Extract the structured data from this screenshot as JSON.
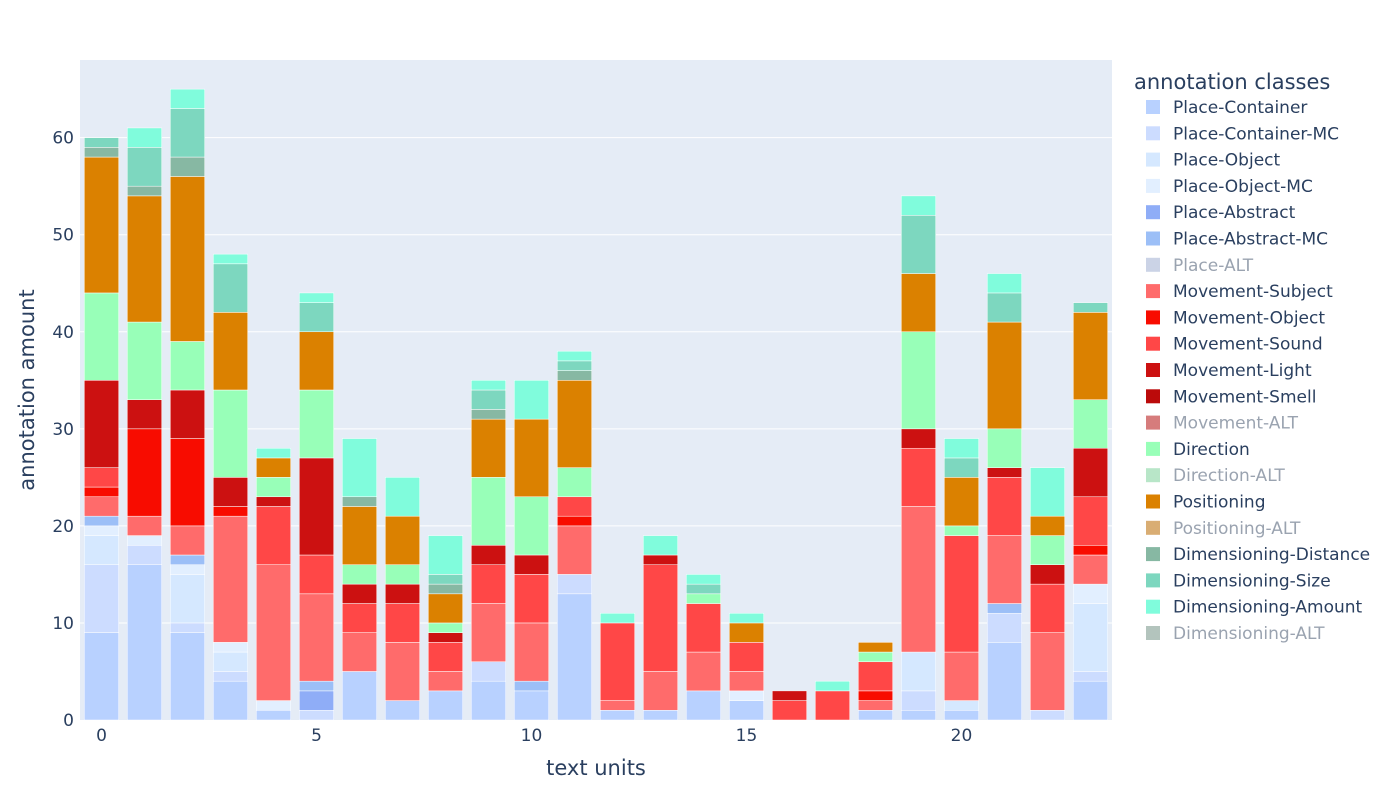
{
  "chart_data": {
    "type": "bar",
    "barmode": "stack",
    "xlabel": "text units",
    "ylabel": "annotation amount",
    "x": [
      0,
      1,
      2,
      3,
      4,
      5,
      6,
      7,
      8,
      9,
      10,
      11,
      12,
      13,
      14,
      15,
      16,
      17,
      18,
      19,
      20,
      21,
      22,
      23
    ],
    "x_range": [
      -0.5,
      23.5
    ],
    "ylim": [
      0,
      68
    ],
    "x_ticks": [
      0,
      5,
      10,
      15,
      20
    ],
    "y_ticks": [
      0,
      10,
      20,
      30,
      40,
      50,
      60
    ],
    "grid": true,
    "legend": {
      "title": "annotation classes",
      "placement": "right"
    },
    "series": [
      {
        "name": "Place-Container",
        "color": "#b8d1ff",
        "legend_dim": false,
        "values": [
          9,
          16,
          9,
          4,
          1,
          0,
          5,
          2,
          3,
          4,
          3,
          13,
          1,
          1,
          3,
          2,
          0,
          0,
          1,
          1,
          1,
          8,
          0,
          4
        ]
      },
      {
        "name": "Place-Container-MC",
        "color": "#ccdcff",
        "legend_dim": false,
        "values": [
          7,
          2,
          1,
          1,
          0,
          1,
          0,
          0,
          0,
          2,
          0,
          2,
          0,
          0,
          0,
          0,
          0,
          0,
          0,
          2,
          0,
          3,
          1,
          1
        ]
      },
      {
        "name": "Place-Object",
        "color": "#d5e8ff",
        "legend_dim": false,
        "values": [
          3,
          0,
          5,
          2,
          0,
          0,
          0,
          0,
          0,
          0,
          0,
          0,
          0,
          0,
          0,
          0,
          0,
          0,
          0,
          4,
          1,
          0,
          0,
          7
        ]
      },
      {
        "name": "Place-Object-MC",
        "color": "#e2efff",
        "legend_dim": false,
        "values": [
          1,
          1,
          1,
          1,
          1,
          0,
          0,
          0,
          0,
          0,
          0,
          0,
          0,
          0,
          0,
          1,
          0,
          0,
          0,
          0,
          0,
          0,
          0,
          2
        ]
      },
      {
        "name": "Place-Abstract",
        "color": "#8fadf7",
        "legend_dim": false,
        "values": [
          0,
          0,
          0,
          0,
          0,
          2,
          0,
          0,
          0,
          0,
          0,
          0,
          0,
          0,
          0,
          0,
          0,
          0,
          0,
          0,
          0,
          0,
          0,
          0
        ]
      },
      {
        "name": "Place-Abstract-MC",
        "color": "#9cbff7",
        "legend_dim": false,
        "values": [
          1,
          0,
          1,
          0,
          0,
          1,
          0,
          0,
          0,
          0,
          1,
          0,
          0,
          0,
          0,
          0,
          0,
          0,
          0,
          0,
          0,
          1,
          0,
          0
        ]
      },
      {
        "name": "Place-ALT",
        "color": "#cbd3e6",
        "legend_dim": true,
        "values": [
          0,
          0,
          0,
          0,
          0,
          0,
          0,
          0,
          0,
          0,
          0,
          0,
          0,
          0,
          0,
          0,
          0,
          0,
          0,
          0,
          0,
          0,
          0,
          0
        ]
      },
      {
        "name": "Movement-Subject",
        "color": "#ff6b6b",
        "legend_dim": false,
        "values": [
          2,
          2,
          3,
          13,
          14,
          9,
          4,
          6,
          2,
          6,
          6,
          5,
          1,
          4,
          4,
          2,
          0,
          0,
          1,
          15,
          5,
          7,
          8,
          3
        ]
      },
      {
        "name": "Movement-Object",
        "color": "#f80c00",
        "legend_dim": false,
        "values": [
          1,
          9,
          9,
          1,
          0,
          0,
          0,
          0,
          0,
          0,
          0,
          1,
          0,
          0,
          0,
          0,
          0,
          0,
          1,
          0,
          0,
          0,
          0,
          1
        ]
      },
      {
        "name": "Movement-Sound",
        "color": "#ff4747",
        "legend_dim": false,
        "values": [
          2,
          0,
          0,
          0,
          6,
          4,
          3,
          4,
          3,
          4,
          5,
          2,
          8,
          11,
          5,
          3,
          2,
          3,
          3,
          6,
          12,
          6,
          5,
          5
        ]
      },
      {
        "name": "Movement-Light",
        "color": "#cc1111",
        "legend_dim": false,
        "values": [
          9,
          3,
          5,
          3,
          1,
          10,
          2,
          2,
          1,
          2,
          2,
          0,
          0,
          1,
          0,
          0,
          1,
          0,
          0,
          2,
          0,
          1,
          2,
          5
        ]
      },
      {
        "name": "Movement-Smell",
        "color": "#bb0a0a",
        "legend_dim": false,
        "values": [
          0,
          0,
          0,
          0,
          0,
          0,
          0,
          0,
          0,
          0,
          0,
          0,
          0,
          0,
          0,
          0,
          0,
          0,
          0,
          0,
          0,
          0,
          0,
          0
        ]
      },
      {
        "name": "Movement-ALT",
        "color": "#d67c7c",
        "legend_dim": true,
        "values": [
          0,
          0,
          0,
          0,
          0,
          0,
          0,
          0,
          0,
          0,
          0,
          0,
          0,
          0,
          0,
          0,
          0,
          0,
          0,
          0,
          0,
          0,
          0,
          0
        ]
      },
      {
        "name": "Direction",
        "color": "#98ffb8",
        "legend_dim": false,
        "values": [
          9,
          8,
          5,
          9,
          2,
          7,
          2,
          2,
          1,
          7,
          6,
          3,
          0,
          0,
          1,
          0,
          0,
          0,
          1,
          10,
          1,
          4,
          3,
          5
        ]
      },
      {
        "name": "Direction-ALT",
        "color": "#b8e6c8",
        "legend_dim": true,
        "values": [
          0,
          0,
          0,
          0,
          0,
          0,
          0,
          0,
          0,
          0,
          0,
          0,
          0,
          0,
          0,
          0,
          0,
          0,
          0,
          0,
          0,
          0,
          0,
          0
        ]
      },
      {
        "name": "Positioning",
        "color": "#db8100",
        "legend_dim": false,
        "values": [
          14,
          13,
          17,
          8,
          2,
          6,
          6,
          5,
          3,
          6,
          8,
          9,
          0,
          0,
          0,
          2,
          0,
          0,
          1,
          6,
          5,
          11,
          2,
          9
        ]
      },
      {
        "name": "Positioning-ALT",
        "color": "#d9ad73",
        "legend_dim": true,
        "values": [
          0,
          0,
          0,
          0,
          0,
          0,
          0,
          0,
          0,
          0,
          0,
          0,
          0,
          0,
          0,
          0,
          0,
          0,
          0,
          0,
          0,
          0,
          0,
          0
        ]
      },
      {
        "name": "Dimensioning-Distance",
        "color": "#87b8a3",
        "legend_dim": false,
        "values": [
          1,
          1,
          2,
          0,
          0,
          0,
          1,
          0,
          1,
          1,
          0,
          1,
          0,
          0,
          0,
          0,
          0,
          0,
          0,
          0,
          0,
          0,
          0,
          0
        ]
      },
      {
        "name": "Dimensioning-Size",
        "color": "#7dd7bf",
        "legend_dim": false,
        "values": [
          1,
          4,
          5,
          5,
          0,
          3,
          0,
          0,
          1,
          2,
          0,
          1,
          0,
          0,
          1,
          0,
          0,
          0,
          0,
          6,
          2,
          3,
          0,
          1
        ]
      },
      {
        "name": "Dimensioning-Amount",
        "color": "#80fcdc",
        "legend_dim": false,
        "values": [
          0,
          2,
          2,
          1,
          1,
          1,
          6,
          4,
          4,
          1,
          4,
          1,
          1,
          2,
          1,
          1,
          0,
          1,
          0,
          2,
          2,
          2,
          5,
          0
        ]
      },
      {
        "name": "Dimensioning-ALT",
        "color": "#b3c4bd",
        "legend_dim": true,
        "values": [
          0,
          0,
          0,
          0,
          0,
          0,
          0,
          0,
          0,
          0,
          0,
          0,
          0,
          0,
          0,
          0,
          0,
          0,
          0,
          0,
          0,
          0,
          0,
          0
        ]
      }
    ]
  }
}
